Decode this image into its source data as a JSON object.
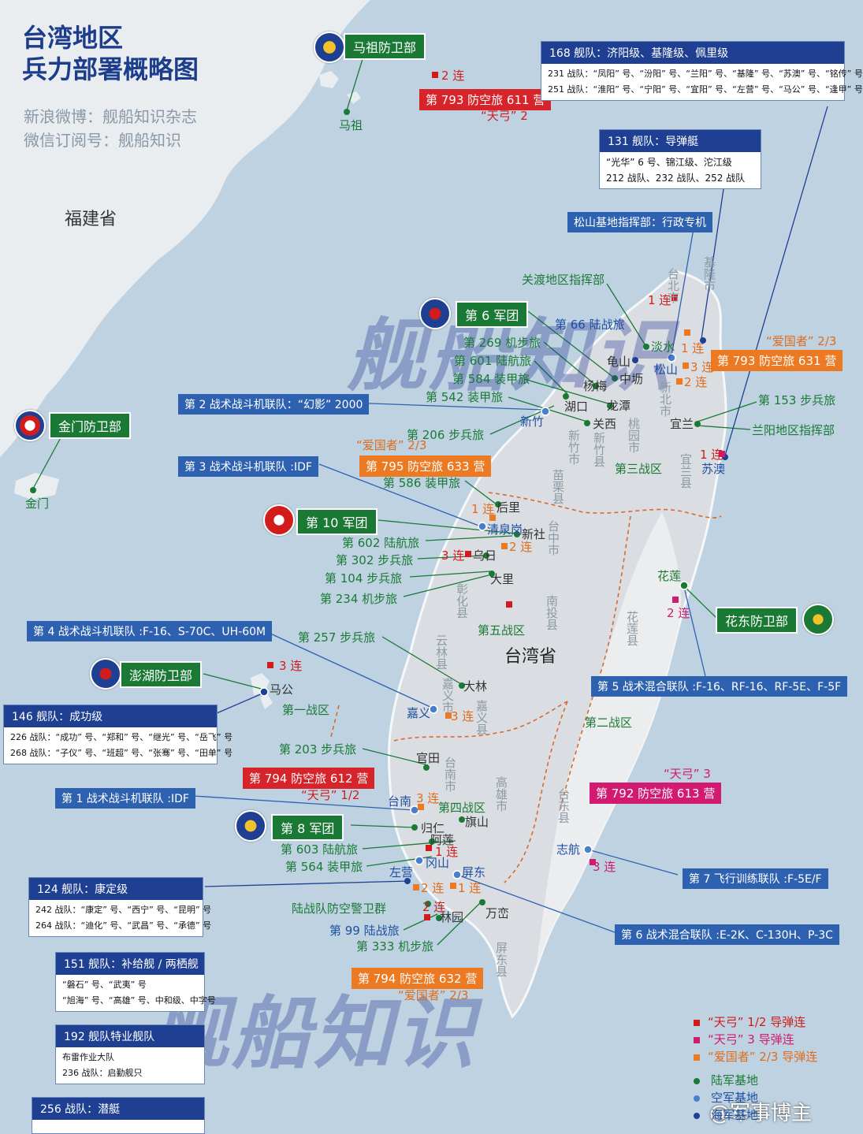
{
  "title": {
    "line1": "台湾地区",
    "line2": "兵力部署概略图"
  },
  "source": {
    "weibo": "新浪微博：舰船知识杂志",
    "wechat": "微信订阅号：舰船知识"
  },
  "watermark": {
    "brand": "舰船知识",
    "weibo_handle": "@军事博主"
  },
  "regions": {
    "fujian": "福建省",
    "taiwan": "台湾省",
    "mazu": "马祖",
    "jinmen": "金门",
    "zone1": "第一战区",
    "zone2": "第二战区",
    "zone3": "第三战区",
    "zone4": "第四战区",
    "zone5": "第五战区"
  },
  "counties": {
    "taibei": "台北市",
    "jilong": "基隆市",
    "xinbei": "新北市",
    "taoyuan": "桃园市",
    "xinzhu_shi": "新竹市",
    "xinzhu_xian": "新竹县",
    "yilan": "宜兰县",
    "miaoli": "苗栗县",
    "taizhong": "台中市",
    "zhanghua": "彰化县",
    "nantou": "南投县",
    "yunlin": "云林县",
    "jiayi_shi": "嘉义市",
    "jiayi_xian": "嘉义县",
    "hualian": "花莲县",
    "tainan": "台南市",
    "gaoxiong": "高雄市",
    "taidong": "台东县",
    "pingdong": "屏东县"
  },
  "commands": {
    "mazu": "马祖防卫部",
    "jinmen": "金门防卫部",
    "penghu": "澎湖防卫部",
    "huadong": "花东防卫部",
    "army6": "第 6 军团",
    "army10": "第 10 军团",
    "army8": "第 8 军团"
  },
  "air_wings": {
    "w2": "第 2 战术战斗机联队：“幻影” 2000",
    "w3": "第 3 战术战斗机联队 :IDF",
    "w4": "第 4 战术战斗机联队 :F-16、S-70C、UH-60M",
    "w5": "第 5 战术混合联队 :F-16、RF-16、RF-5E、F-5F",
    "w1": "第 1 战术战斗机联队 :IDF",
    "w7": "第 7 飞行训练联队 :F-5E/F",
    "w6": "第 6 战术混合联队 :E-2K、C-130H、P-3C",
    "songshan": "松山基地指挥部：行政专机"
  },
  "air_defense": {
    "b611": "第 793 防空旅 611 营",
    "b611_note": "“天弓” 2",
    "b631": "第 793 防空旅 631 营",
    "b631_note": "“爱国者” 2/3",
    "b633": "第 795 防空旅 633 营",
    "b633_note": "“爱国者” 2/3",
    "b612": "第 794 防空旅 612 营",
    "b612_note": "“天弓” 1/2",
    "b613": "第 792 防空旅 613 营",
    "b613_note": "“天弓” 3",
    "b632": "第 794 防空旅 632 营",
    "b632_note": "“爱国者” 2/3"
  },
  "units": {
    "guandu": "关渡地区指挥部",
    "b66": "第 66 陆战旅",
    "b269": "第 269 机步旅",
    "b601": "第 601 陆航旅",
    "b584": "第 584 装甲旅",
    "b542": "第 542 装甲旅",
    "b206": "第 206 步兵旅",
    "b586": "第 586 装甲旅",
    "b153": "第 153 步兵旅",
    "lanyang": "兰阳地区指挥部",
    "b602": "第 602 陆航旅",
    "b302": "第 302 步兵旅",
    "b104": "第 104 步兵旅",
    "b234": "第 234 机步旅",
    "b257": "第 257 步兵旅",
    "b203": "第 203 步兵旅",
    "b603": "第 603 陆航旅",
    "b564": "第 564 装甲旅",
    "marine_ad": "陆战队防空警卫群",
    "b99": "第 99 陆战旅",
    "b333": "第 333 机步旅"
  },
  "bases": {
    "danshui": "淡水",
    "guishan": "龟山",
    "zhongli": "中坜",
    "songshan": "松山",
    "yangmei": "杨梅",
    "hukou": "湖口",
    "longtan": "龙潭",
    "xinzhu": "新竹",
    "guanxi": "关西",
    "yilan": "宜兰",
    "suao": "苏澳",
    "houli": "后里",
    "qingquangang": "清泉岗",
    "xinshe": "新社",
    "wuri": "乌日",
    "dali": "大里",
    "hualian": "花莲",
    "magong": "马公",
    "dalin": "大林",
    "jiayi": "嘉义",
    "guantian": "官田",
    "tainan": "台南",
    "qishan": "旗山",
    "guiren": "归仁",
    "alian": "阿莲",
    "gangshan": "冈山",
    "zuoying": "左营",
    "pingdong": "屏东",
    "linyuan": "林园",
    "fangliao": "万峦",
    "zhihang": "志航"
  },
  "companies": {
    "c1": "1 连",
    "c2": "2 连",
    "c3": "3 连"
  },
  "fleets": {
    "f168_head": "168 舰队：济阳级、基隆级、佩里级",
    "f168_l1": "231 战队：“凤阳” 号、“汾阳” 号、“兰阳” 号、“基隆” 号、“苏澳” 号、“铭传” 号",
    "f168_l2": "251 战队：“淮阳” 号、“宁阳” 号、“宜阳” 号、“左营” 号、“马公” 号、“逢甲” 号",
    "f131_head": "131 舰队：导弹艇",
    "f131_l1": "“光华” 6 号、锦江级、沱江级",
    "f131_l2": "212 战队、232 战队、252 战队",
    "f146_head": "146 舰队：成功级",
    "f146_l1": "226 战队：“成功” 号、“郑和” 号、“继光” 号、“岳飞” 号",
    "f146_l2": "268 战队：“子仪” 号、“班超” 号、“张骞” 号、“田单” 号",
    "f124_head": "124 舰队：康定级",
    "f124_l1": "242 战队：“康定” 号、“西宁” 号、“昆明” 号",
    "f124_l2": "264 战队：“迪化” 号、“武昌” 号、“承德” 号",
    "f151_head": "151 舰队：补给舰 / 两栖舰",
    "f151_l1": "“磐石” 号、“武夷” 号",
    "f151_l2": "“旭海” 号、“高雄” 号、中和级、中字号",
    "f192_head": "192 舰队特业舰队",
    "f192_l1": "布雷作业大队",
    "f192_l2": "236 战队：启勤舰只",
    "f256_head": "256 战队：潜艇"
  },
  "legend": {
    "tiangong12": "“天弓” 1/2 导弹连",
    "tiangong3": "“天弓” 3 导弹连",
    "patriot": "“爱国者” 2/3 导弹连",
    "army": "陆军基地",
    "air": "空军基地",
    "navy": "海军基地"
  },
  "colors": {
    "sea": "#bed2e1",
    "land": "#e9edf0",
    "taiwan": "#dadee3",
    "army_green": "#1a7a35",
    "air_blue": "#2e62b0",
    "navy_dark": "#1e3f92",
    "tiangong12_red": "#d21c1c",
    "tiangong3_pink": "#d01c6e",
    "patriot_orange": "#ec7a22"
  }
}
